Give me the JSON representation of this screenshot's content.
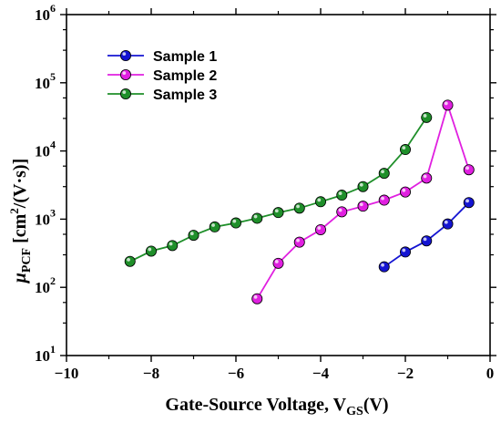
{
  "chart_data": {
    "type": "line",
    "x_axis": {
      "title_main": "Gate-Source Voltage, V",
      "title_sub": "GS",
      "title_tail": "(V)",
      "range": [
        -10,
        0
      ],
      "ticks": [
        {
          "value": -10,
          "label": "−10"
        },
        {
          "value": -8,
          "label": "−8"
        },
        {
          "value": -6,
          "label": "−6"
        },
        {
          "value": -4,
          "label": "−4"
        },
        {
          "value": -2,
          "label": "−2"
        },
        {
          "value": 0,
          "label": "0"
        }
      ]
    },
    "y_axis": {
      "scale": "log",
      "title_mu": "μ",
      "title_sub": "PCF",
      "title_units": " [cm",
      "title_sup": "2",
      "title_tail": "/(V·s)]",
      "range": [
        10,
        1000000
      ],
      "ticks": [
        {
          "value": 10,
          "base": "10",
          "exp": "1"
        },
        {
          "value": 100,
          "base": "10",
          "exp": "2"
        },
        {
          "value": 1000,
          "base": "10",
          "exp": "3"
        },
        {
          "value": 10000,
          "base": "10",
          "exp": "4"
        },
        {
          "value": 100000,
          "base": "10",
          "exp": "5"
        },
        {
          "value": 1000000,
          "base": "10",
          "exp": "6"
        }
      ]
    },
    "grid": false,
    "legend_position": "top-left",
    "series": [
      {
        "name": "Sample 1",
        "color": "#1414d2",
        "points": [
          [
            -2.5,
            200
          ],
          [
            -2.0,
            330
          ],
          [
            -1.5,
            480
          ],
          [
            -1.0,
            850
          ],
          [
            -0.5,
            1750
          ]
        ]
      },
      {
        "name": "Sample 2",
        "color": "#e020e0",
        "points": [
          [
            -5.5,
            68
          ],
          [
            -5.0,
            225
          ],
          [
            -4.5,
            460
          ],
          [
            -4.0,
            700
          ],
          [
            -3.5,
            1280
          ],
          [
            -3.0,
            1550
          ],
          [
            -2.5,
            1900
          ],
          [
            -2.0,
            2500
          ],
          [
            -1.5,
            4000
          ],
          [
            -1.0,
            47000
          ],
          [
            -0.5,
            5300
          ]
        ]
      },
      {
        "name": "Sample 3",
        "color": "#1f8f2a",
        "points": [
          [
            -8.5,
            240
          ],
          [
            -8.0,
            340
          ],
          [
            -7.5,
            410
          ],
          [
            -7.0,
            580
          ],
          [
            -6.5,
            770
          ],
          [
            -6.0,
            880
          ],
          [
            -5.5,
            1030
          ],
          [
            -5.0,
            1250
          ],
          [
            -4.5,
            1450
          ],
          [
            -4.0,
            1800
          ],
          [
            -3.5,
            2250
          ],
          [
            -3.0,
            3000
          ],
          [
            -2.5,
            4700
          ],
          [
            -2.0,
            10500
          ],
          [
            -1.5,
            31000
          ]
        ]
      }
    ]
  }
}
